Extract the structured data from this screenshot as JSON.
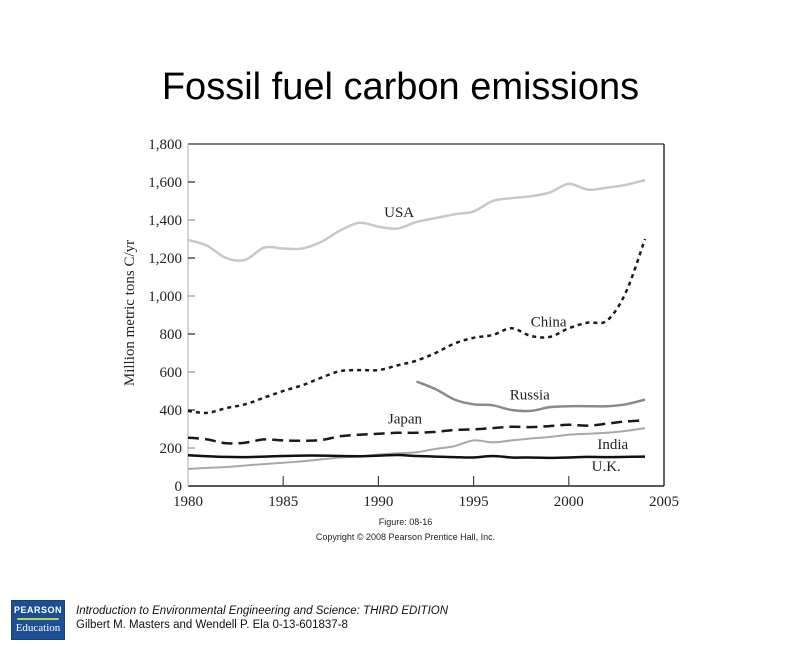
{
  "slide": {
    "title": "Fossil fuel carbon emissions",
    "figure_caption": "Figure: 08-16",
    "copyright": "Copyright © 2008 Pearson Prentice Hall, Inc.",
    "footer": {
      "logo_top": "PEARSON",
      "logo_bottom": "Education",
      "book_title": "Introduction to Environmental Engineering and Science: THIRD EDITION",
      "authors": "Gilbert M. Masters and Wendell P. Ela  0-13-601837-8"
    }
  },
  "chart_data": {
    "type": "line",
    "title": "Fossil fuel carbon emissions",
    "xlabel": "",
    "ylabel": "Million metric tons C/yr",
    "xlim": [
      1980,
      2005
    ],
    "ylim": [
      0,
      1800
    ],
    "xticks": [
      1980,
      1985,
      1990,
      1995,
      2000,
      2005
    ],
    "yticks": [
      0,
      200,
      400,
      600,
      800,
      1000,
      1200,
      1400,
      1600,
      1800
    ],
    "ytick_labels": [
      "0",
      "200",
      "400",
      "600",
      "800",
      "1,000",
      "1,200",
      "1,400",
      "1,600",
      "1,800"
    ],
    "grid": false,
    "legend_position": "inline labels",
    "series": [
      {
        "name": "USA",
        "color": "#c8c8c8",
        "dash": "",
        "width": 2.5,
        "label_pos": [
          1990.3,
          1415
        ],
        "x": [
          1980,
          1981,
          1982,
          1983,
          1984,
          1985,
          1986,
          1987,
          1988,
          1989,
          1990,
          1991,
          1992,
          1993,
          1994,
          1995,
          1996,
          1997,
          1998,
          1999,
          2000,
          2001,
          2002,
          2003,
          2004
        ],
        "y": [
          1295,
          1265,
          1200,
          1190,
          1255,
          1250,
          1250,
          1285,
          1345,
          1385,
          1365,
          1355,
          1390,
          1410,
          1430,
          1445,
          1500,
          1515,
          1525,
          1545,
          1590,
          1560,
          1570,
          1585,
          1610
        ]
      },
      {
        "name": "China",
        "color": "#1a1a1a",
        "dash": "4,4",
        "width": 2.5,
        "label_pos": [
          1998.0,
          840
        ],
        "x": [
          1980,
          1981,
          1982,
          1983,
          1984,
          1985,
          1986,
          1987,
          1988,
          1989,
          1990,
          1991,
          1992,
          1993,
          1994,
          1995,
          1996,
          1997,
          1998,
          1999,
          2000,
          2001,
          2002,
          2003,
          2004
        ],
        "y": [
          395,
          385,
          410,
          430,
          465,
          500,
          530,
          570,
          605,
          610,
          610,
          635,
          660,
          700,
          750,
          780,
          795,
          830,
          790,
          785,
          830,
          860,
          870,
          1020,
          1300
        ]
      },
      {
        "name": "Russia",
        "color": "#8a8a8a",
        "dash": "",
        "width": 2.5,
        "label_pos": [
          1996.9,
          455
        ],
        "x": [
          1992,
          1993,
          1994,
          1995,
          1996,
          1997,
          1998,
          1999,
          2000,
          2001,
          2002,
          2003,
          2004
        ],
        "y": [
          550,
          510,
          455,
          430,
          425,
          400,
          395,
          415,
          420,
          420,
          420,
          430,
          455
        ]
      },
      {
        "name": "Japan",
        "color": "#1a1a1a",
        "dash": "11,6",
        "width": 2.5,
        "label_pos": [
          1990.5,
          330
        ],
        "x": [
          1980,
          1981,
          1982,
          1983,
          1984,
          1985,
          1986,
          1987,
          1988,
          1989,
          1990,
          1991,
          1992,
          1993,
          1994,
          1995,
          1996,
          1997,
          1998,
          1999,
          2000,
          2001,
          2002,
          2003,
          2004
        ],
        "y": [
          255,
          245,
          225,
          228,
          245,
          240,
          238,
          242,
          262,
          270,
          275,
          280,
          280,
          285,
          295,
          298,
          305,
          312,
          310,
          315,
          322,
          318,
          328,
          340,
          345
        ]
      },
      {
        "name": "India",
        "color": "#a8a8a8",
        "dash": "",
        "width": 2,
        "label_pos": [
          2001.5,
          195
        ],
        "x": [
          1980,
          1981,
          1982,
          1983,
          1984,
          1985,
          1986,
          1987,
          1988,
          1989,
          1990,
          1991,
          1992,
          1993,
          1994,
          1995,
          1996,
          1997,
          1998,
          1999,
          2000,
          2001,
          2002,
          2003,
          2004
        ],
        "y": [
          90,
          95,
          100,
          108,
          115,
          122,
          130,
          140,
          150,
          155,
          165,
          172,
          178,
          195,
          210,
          240,
          230,
          240,
          250,
          258,
          270,
          275,
          280,
          290,
          305
        ]
      },
      {
        "name": "U.K.",
        "color": "#111111",
        "dash": "",
        "width": 2.5,
        "label_pos": [
          2001.2,
          80
        ],
        "x": [
          1980,
          1981,
          1982,
          1983,
          1984,
          1985,
          1986,
          1987,
          1988,
          1989,
          1990,
          1991,
          1992,
          1993,
          1994,
          1995,
          1996,
          1997,
          1998,
          1999,
          2000,
          2001,
          2002,
          2003,
          2004
        ],
        "y": [
          162,
          157,
          153,
          152,
          155,
          158,
          160,
          160,
          158,
          157,
          160,
          163,
          158,
          155,
          152,
          150,
          158,
          150,
          150,
          148,
          150,
          153,
          152,
          153,
          155
        ]
      }
    ]
  }
}
